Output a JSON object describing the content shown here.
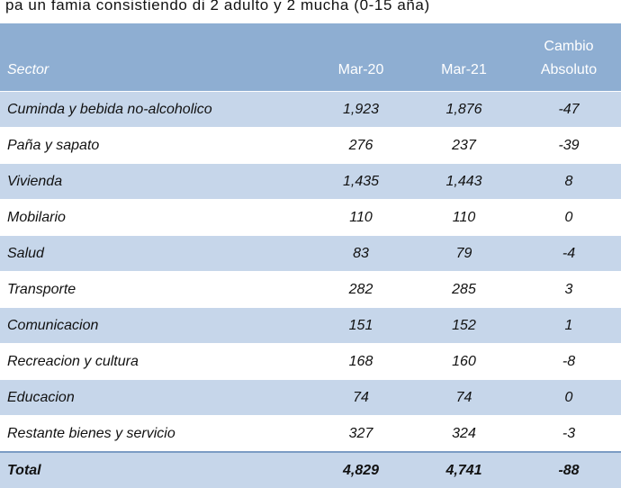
{
  "caption": "pa un famia consistiendo di 2 adulto y 2 mucha (0-15 aña)",
  "header": {
    "change_top": "Cambio",
    "sector": "Sector",
    "mar20": "Mar-20",
    "mar21": "Mar-21",
    "absolute": "Absoluto"
  },
  "rows": [
    {
      "sector": "Cuminda y bebida no-alcoholico",
      "mar20": "1,923",
      "mar21": "1,876",
      "change": "-47"
    },
    {
      "sector": "Paña y sapato",
      "mar20": "276",
      "mar21": "237",
      "change": "-39"
    },
    {
      "sector": "Vivienda",
      "mar20": "1,435",
      "mar21": "1,443",
      "change": "8"
    },
    {
      "sector": "Mobilario",
      "mar20": "110",
      "mar21": "110",
      "change": "0"
    },
    {
      "sector": "Salud",
      "mar20": "83",
      "mar21": "79",
      "change": "-4"
    },
    {
      "sector": "Transporte",
      "mar20": "282",
      "mar21": "285",
      "change": "3"
    },
    {
      "sector": "Comunicacion",
      "mar20": "151",
      "mar21": "152",
      "change": "1"
    },
    {
      "sector": "Recreacion y cultura",
      "mar20": "168",
      "mar21": "160",
      "change": "-8"
    },
    {
      "sector": "Educacion",
      "mar20": "74",
      "mar21": "74",
      "change": "0"
    },
    {
      "sector": "Restante bienes y servicio",
      "mar20": "327",
      "mar21": "324",
      "change": "-3"
    }
  ],
  "total": {
    "sector": "Total",
    "mar20": "4,829",
    "mar21": "4,741",
    "change": "-88"
  },
  "colors": {
    "header": "#8eaed2",
    "band": "#c6d6ea"
  }
}
